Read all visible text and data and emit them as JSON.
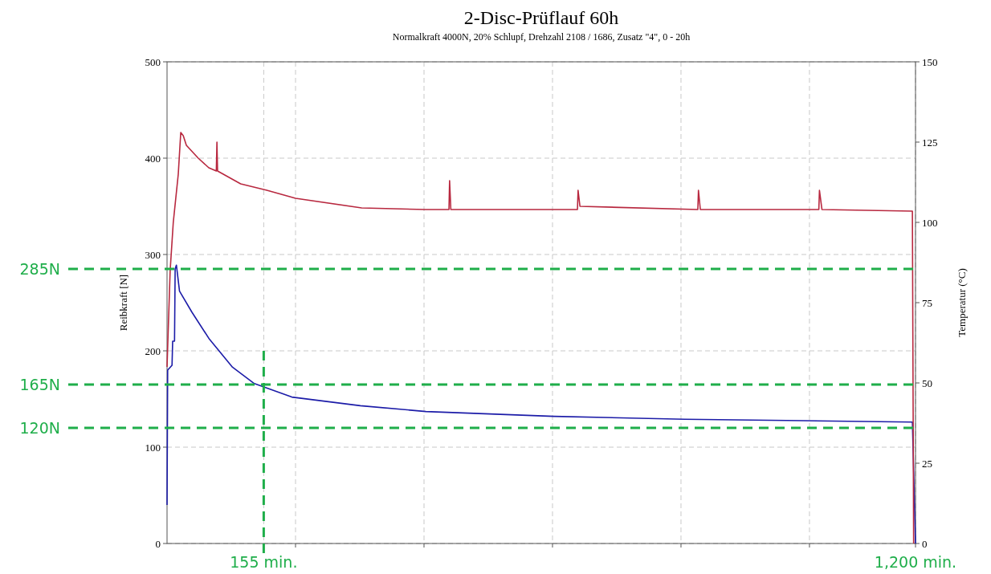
{
  "chart_data": {
    "type": "line",
    "title": "2-Disc-Prüflauf 60h",
    "subtitle": "Normalkraft 4000N, 20% Schlupf, Drehzahl 2108 / 1686, Zusatz \"4\", 0 - 20h",
    "ylabel": "Reibkraft [N]",
    "y2label": "Temperatur (°C)",
    "xlim": [
      0,
      1200
    ],
    "xticks": [
      {
        "value": 155,
        "label": "155 min."
      },
      {
        "value": 1200,
        "label": "1,200 min."
      },
      {
        "value": 206,
        "label": null
      },
      {
        "value": 412,
        "label": null
      },
      {
        "value": 618,
        "label": null
      },
      {
        "value": 824,
        "label": null
      },
      {
        "value": 1030,
        "label": null
      }
    ],
    "ylim": [
      0,
      500
    ],
    "yticks": [
      0,
      100,
      200,
      300,
      400,
      500
    ],
    "y2lim": [
      0,
      150
    ],
    "y2ticks": [
      0,
      25,
      50,
      75,
      100,
      125,
      150
    ],
    "grid": true,
    "marker": "none",
    "line_style": "solid",
    "series": [
      {
        "color": "#1c1ca8",
        "x": [
          0,
          1,
          8,
          9,
          12,
          13,
          15,
          20,
          40,
          68,
          105,
          140,
          200,
          310,
          415,
          620,
          830,
          1020,
          1195,
          1200
        ],
        "values": [
          40,
          180,
          185,
          210,
          210,
          285,
          289,
          262,
          240,
          212,
          183,
          166,
          152,
          143,
          137,
          132,
          129,
          127.5,
          126,
          0
        ]
      },
      {
        "color": "#b8283f",
        "axis": "y2",
        "x": [
          0,
          5,
          10,
          18,
          22,
          26,
          31,
          50,
          67,
          79,
          80,
          81,
          118,
          160,
          206,
          312,
          415,
          452,
          453,
          455,
          658,
          659,
          662,
          851,
          852,
          855,
          1045,
          1046,
          1050,
          1195,
          1197
        ],
        "values": [
          55,
          85,
          100,
          115,
          128,
          127,
          124,
          120,
          117,
          116,
          125,
          116,
          112,
          110,
          107.5,
          104.5,
          104,
          104,
          113,
          104,
          104,
          110,
          105,
          104,
          110,
          104,
          104,
          110,
          104,
          103.5,
          0
        ]
      }
    ],
    "ref_lines": [
      {
        "axis": "y",
        "value": 285,
        "label": "285N",
        "color": "#1fae4a",
        "line_style": "dashed"
      },
      {
        "axis": "y",
        "value": 165,
        "label": "165N",
        "color": "#1fae4a",
        "line_style": "dashed"
      },
      {
        "axis": "y",
        "value": 120,
        "label": "120N",
        "color": "#1fae4a",
        "line_style": "dashed"
      },
      {
        "axis": "x",
        "value": 155,
        "color": "#1fae4a",
        "line_style": "dashed"
      }
    ]
  }
}
